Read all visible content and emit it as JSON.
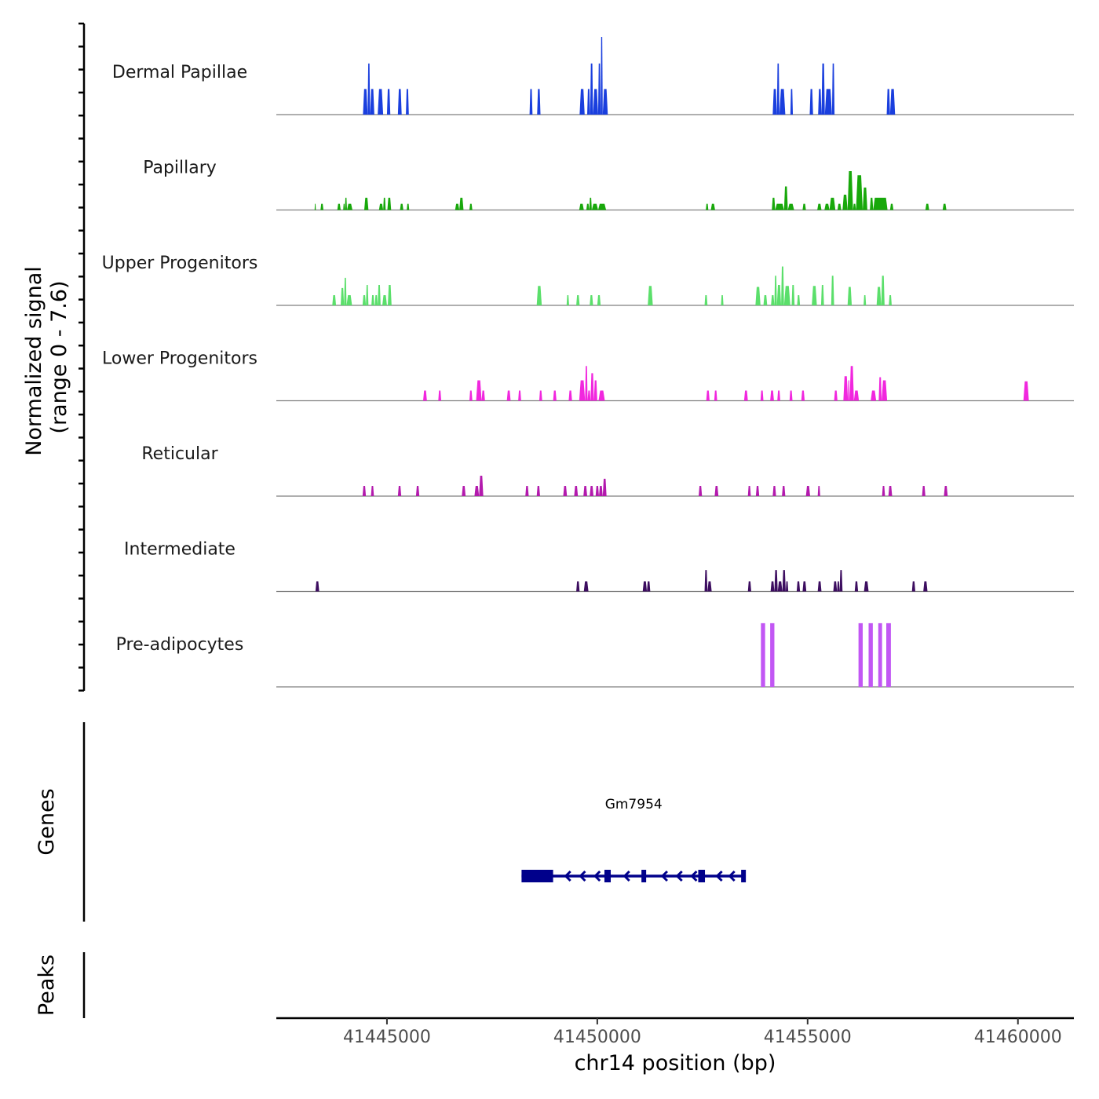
{
  "chart_data": {
    "type": "area",
    "title": "",
    "chromosome": "chr14",
    "xlabel": "chr14 position (bp)",
    "ylabel_line1": "Normalized signal",
    "ylabel_line2": "(range 0 - 7.6)",
    "ylim": [
      0,
      7.6
    ],
    "xlim": [
      41442370,
      41461330
    ],
    "x_ticks": [
      41445000,
      41450000,
      41455000,
      41460000
    ],
    "x_tick_labels": [
      "41445000",
      "41450000",
      "41455000",
      "41460000"
    ],
    "tracks": [
      {
        "name": "Dermal Papillae",
        "color": "#1A3FDE",
        "peaks": [
          [
            41444430,
            41444540,
            2.5
          ],
          [
            41444540,
            41444600,
            5.0
          ],
          [
            41444600,
            41444700,
            2.5
          ],
          [
            41444780,
            41444910,
            2.5
          ],
          [
            41445000,
            41445080,
            2.5
          ],
          [
            41445260,
            41445350,
            2.5
          ],
          [
            41445450,
            41445520,
            2.5
          ],
          [
            41448390,
            41448460,
            2.5
          ],
          [
            41448570,
            41448650,
            2.5
          ],
          [
            41449580,
            41449700,
            2.5
          ],
          [
            41449760,
            41449830,
            2.5
          ],
          [
            41449830,
            41449900,
            5.0
          ],
          [
            41449900,
            41450020,
            2.5
          ],
          [
            41450020,
            41450080,
            5.0
          ],
          [
            41450080,
            41450130,
            7.6
          ],
          [
            41450130,
            41450250,
            2.5
          ],
          [
            41454170,
            41454270,
            2.5
          ],
          [
            41454270,
            41454330,
            5.0
          ],
          [
            41454330,
            41454470,
            2.5
          ],
          [
            41454590,
            41454650,
            2.5
          ],
          [
            41455050,
            41455130,
            2.5
          ],
          [
            41455250,
            41455330,
            2.5
          ],
          [
            41455330,
            41455410,
            5.0
          ],
          [
            41455410,
            41455580,
            2.5
          ],
          [
            41455580,
            41455640,
            5.0
          ],
          [
            41456880,
            41456960,
            2.5
          ],
          [
            41456960,
            41457080,
            2.5
          ]
        ]
      },
      {
        "name": "Papillary",
        "color": "#18A80B",
        "peaks": [
          [
            41443280,
            41443310,
            0.6
          ],
          [
            41443420,
            41443490,
            0.6
          ],
          [
            41443820,
            41443900,
            0.6
          ],
          [
            41443960,
            41444000,
            0.6
          ],
          [
            41444000,
            41444050,
            1.2
          ],
          [
            41444050,
            41444180,
            0.6
          ],
          [
            41444460,
            41444560,
            1.2
          ],
          [
            41444810,
            41444910,
            0.6
          ],
          [
            41444910,
            41444970,
            1.2
          ],
          [
            41445010,
            41445100,
            1.2
          ],
          [
            41445310,
            41445390,
            0.6
          ],
          [
            41445470,
            41445530,
            0.6
          ],
          [
            41446620,
            41446720,
            0.6
          ],
          [
            41446720,
            41446820,
            1.2
          ],
          [
            41446960,
            41447030,
            0.6
          ],
          [
            41449570,
            41449680,
            0.6
          ],
          [
            41449740,
            41449810,
            0.6
          ],
          [
            41449810,
            41449870,
            1.2
          ],
          [
            41449870,
            41450020,
            0.6
          ],
          [
            41450020,
            41450210,
            0.6
          ],
          [
            41452580,
            41452640,
            0.6
          ],
          [
            41452700,
            41452800,
            0.6
          ],
          [
            41454150,
            41454230,
            1.2
          ],
          [
            41454230,
            41454440,
            0.6
          ],
          [
            41454440,
            41454530,
            2.3
          ],
          [
            41454530,
            41454680,
            0.6
          ],
          [
            41454880,
            41454960,
            0.6
          ],
          [
            41455230,
            41455330,
            0.6
          ],
          [
            41455400,
            41455520,
            0.6
          ],
          [
            41455520,
            41455660,
            1.2
          ],
          [
            41455710,
            41455800,
            0.6
          ],
          [
            41455830,
            41455950,
            1.5
          ],
          [
            41455950,
            41456080,
            3.8
          ],
          [
            41456080,
            41456150,
            0.6
          ],
          [
            41456150,
            41456310,
            3.4
          ],
          [
            41456310,
            41456420,
            2.2
          ],
          [
            41456480,
            41456560,
            1.2
          ],
          [
            41456560,
            41456900,
            1.2
          ],
          [
            41456960,
            41457040,
            0.6
          ],
          [
            41457800,
            41457890,
            0.6
          ],
          [
            41458210,
            41458300,
            0.6
          ]
        ]
      },
      {
        "name": "Upper Progenitors",
        "color": "#5BDF6B",
        "peaks": [
          [
            41443700,
            41443790,
            1.0
          ],
          [
            41443900,
            41443980,
            1.7
          ],
          [
            41443980,
            41444040,
            2.7
          ],
          [
            41444040,
            41444170,
            1.0
          ],
          [
            41444420,
            41444500,
            1.0
          ],
          [
            41444500,
            41444560,
            2.0
          ],
          [
            41444630,
            41444700,
            1.0
          ],
          [
            41444710,
            41444780,
            1.0
          ],
          [
            41444780,
            41444850,
            2.0
          ],
          [
            41444890,
            41445000,
            1.0
          ],
          [
            41445020,
            41445110,
            2.0
          ],
          [
            41448560,
            41448680,
            1.9
          ],
          [
            41449270,
            41449330,
            1.0
          ],
          [
            41449500,
            41449580,
            1.0
          ],
          [
            41449820,
            41449900,
            1.0
          ],
          [
            41450000,
            41450080,
            1.0
          ],
          [
            41451200,
            41451320,
            1.9
          ],
          [
            41452550,
            41452620,
            1.0
          ],
          [
            41452940,
            41453000,
            1.0
          ],
          [
            41453760,
            41453880,
            1.8
          ],
          [
            41453950,
            41454040,
            1.0
          ],
          [
            41454130,
            41454210,
            1.0
          ],
          [
            41454210,
            41454270,
            2.9
          ],
          [
            41454270,
            41454370,
            2.0
          ],
          [
            41454370,
            41454440,
            3.8
          ],
          [
            41454440,
            41454590,
            1.9
          ],
          [
            41454620,
            41454690,
            2.0
          ],
          [
            41454750,
            41454820,
            1.0
          ],
          [
            41455100,
            41455220,
            1.9
          ],
          [
            41455320,
            41455390,
            2.0
          ],
          [
            41455560,
            41455630,
            2.9
          ],
          [
            41455950,
            41456050,
            1.8
          ],
          [
            41456330,
            41456390,
            1.0
          ],
          [
            41456640,
            41456750,
            1.8
          ],
          [
            41456750,
            41456830,
            2.9
          ],
          [
            41456930,
            41457000,
            1.0
          ]
        ]
      },
      {
        "name": "Lower Progenitors",
        "color": "#F127DE",
        "peaks": [
          [
            41445860,
            41445950,
            1.0
          ],
          [
            41446220,
            41446290,
            1.0
          ],
          [
            41446960,
            41447030,
            1.0
          ],
          [
            41447120,
            41447250,
            2.0
          ],
          [
            41447250,
            41447330,
            1.0
          ],
          [
            41447850,
            41447940,
            1.0
          ],
          [
            41448120,
            41448190,
            1.0
          ],
          [
            41448620,
            41448690,
            1.0
          ],
          [
            41448950,
            41449030,
            1.0
          ],
          [
            41449320,
            41449400,
            1.0
          ],
          [
            41449570,
            41449710,
            2.0
          ],
          [
            41449710,
            41449770,
            3.4
          ],
          [
            41449770,
            41449840,
            1.0
          ],
          [
            41449840,
            41449920,
            2.7
          ],
          [
            41449920,
            41450000,
            2.0
          ],
          [
            41450030,
            41450180,
            1.0
          ],
          [
            41452590,
            41452670,
            1.0
          ],
          [
            41452780,
            41452850,
            1.0
          ],
          [
            41453490,
            41453580,
            1.0
          ],
          [
            41453880,
            41453950,
            1.0
          ],
          [
            41454110,
            41454200,
            1.0
          ],
          [
            41454280,
            41454350,
            1.0
          ],
          [
            41454570,
            41454640,
            1.0
          ],
          [
            41454850,
            41454930,
            1.0
          ],
          [
            41455630,
            41455710,
            1.0
          ],
          [
            41455850,
            41455960,
            2.4
          ],
          [
            41455960,
            41456000,
            2.0
          ],
          [
            41456000,
            41456100,
            3.4
          ],
          [
            41456100,
            41456220,
            1.0
          ],
          [
            41456500,
            41456630,
            1.0
          ],
          [
            41456690,
            41456760,
            2.3
          ],
          [
            41456760,
            41456890,
            2.0
          ],
          [
            41460130,
            41460260,
            1.9
          ]
        ]
      },
      {
        "name": "Reticular",
        "color": "#B31AAD",
        "peaks": [
          [
            41444420,
            41444500,
            1.0
          ],
          [
            41444620,
            41444690,
            1.0
          ],
          [
            41445260,
            41445340,
            1.0
          ],
          [
            41445690,
            41445770,
            1.0
          ],
          [
            41446780,
            41446870,
            1.0
          ],
          [
            41447080,
            41447190,
            1.0
          ],
          [
            41447190,
            41447290,
            2.0
          ],
          [
            41448290,
            41448370,
            1.0
          ],
          [
            41448560,
            41448640,
            1.0
          ],
          [
            41449190,
            41449280,
            1.0
          ],
          [
            41449450,
            41449540,
            1.0
          ],
          [
            41449670,
            41449760,
            1.0
          ],
          [
            41449820,
            41449910,
            1.0
          ],
          [
            41449960,
            41450040,
            1.0
          ],
          [
            41450040,
            41450130,
            1.0
          ],
          [
            41450130,
            41450220,
            1.7
          ],
          [
            41452410,
            41452490,
            1.0
          ],
          [
            41452790,
            41452880,
            1.0
          ],
          [
            41453580,
            41453650,
            1.0
          ],
          [
            41453770,
            41453850,
            1.0
          ],
          [
            41454170,
            41454250,
            1.0
          ],
          [
            41454390,
            41454470,
            1.0
          ],
          [
            41454960,
            41455060,
            1.0
          ],
          [
            41455240,
            41455300,
            1.0
          ],
          [
            41456770,
            41456840,
            1.0
          ],
          [
            41456920,
            41457010,
            1.0
          ],
          [
            41457720,
            41457800,
            1.0
          ],
          [
            41458240,
            41458330,
            1.0
          ]
        ]
      },
      {
        "name": "Intermediate",
        "color": "#3D0E60",
        "peaks": [
          [
            41443300,
            41443390,
            1.0
          ],
          [
            41449500,
            41449580,
            1.0
          ],
          [
            41449680,
            41449790,
            1.0
          ],
          [
            41451080,
            41451180,
            1.0
          ],
          [
            41451180,
            41451260,
            1.0
          ],
          [
            41452550,
            41452620,
            2.1
          ],
          [
            41452620,
            41452720,
            1.0
          ],
          [
            41453580,
            41453660,
            1.0
          ],
          [
            41454120,
            41454210,
            1.0
          ],
          [
            41454210,
            41454290,
            2.1
          ],
          [
            41454290,
            41454400,
            1.0
          ],
          [
            41454400,
            41454480,
            2.1
          ],
          [
            41454480,
            41454540,
            1.0
          ],
          [
            41454740,
            41454820,
            1.0
          ],
          [
            41454880,
            41454970,
            1.0
          ],
          [
            41455240,
            41455330,
            1.0
          ],
          [
            41455610,
            41455700,
            1.0
          ],
          [
            41455700,
            41455760,
            1.0
          ],
          [
            41455760,
            41455830,
            2.1
          ],
          [
            41456120,
            41456200,
            1.0
          ],
          [
            41456340,
            41456450,
            1.0
          ],
          [
            41457480,
            41457560,
            1.0
          ],
          [
            41457750,
            41457850,
            1.0
          ]
        ]
      },
      {
        "name": "Pre-adipocytes",
        "color": "#C257F4",
        "peaks": [
          [
            41453890,
            41453990,
            7.6
          ],
          [
            41454110,
            41454210,
            7.6
          ],
          [
            41456210,
            41456310,
            7.6
          ],
          [
            41456450,
            41456550,
            7.6
          ],
          [
            41456680,
            41456770,
            7.6
          ],
          [
            41456870,
            41456980,
            7.6
          ]
        ]
      }
    ],
    "genes_track": {
      "label": "Genes",
      "gene_name": "Gene",
      "genes": [
        {
          "name": "Gm7954",
          "strand": "-",
          "start": 41448200,
          "end": 41453530,
          "color": "#00008B",
          "exons": [
            [
              41448200,
              41448950
            ],
            [
              41450170,
              41450320
            ],
            [
              41451050,
              41451160
            ],
            [
              41452400,
              41452560
            ],
            [
              41453420,
              41453530
            ]
          ],
          "arrow_positions": [
            41449250,
            41449600,
            41449950,
            41450650,
            41451550,
            41451900,
            41452250,
            41452850,
            41453150
          ]
        }
      ]
    },
    "peaks_track": {
      "label": "Peaks",
      "peaks": []
    }
  }
}
